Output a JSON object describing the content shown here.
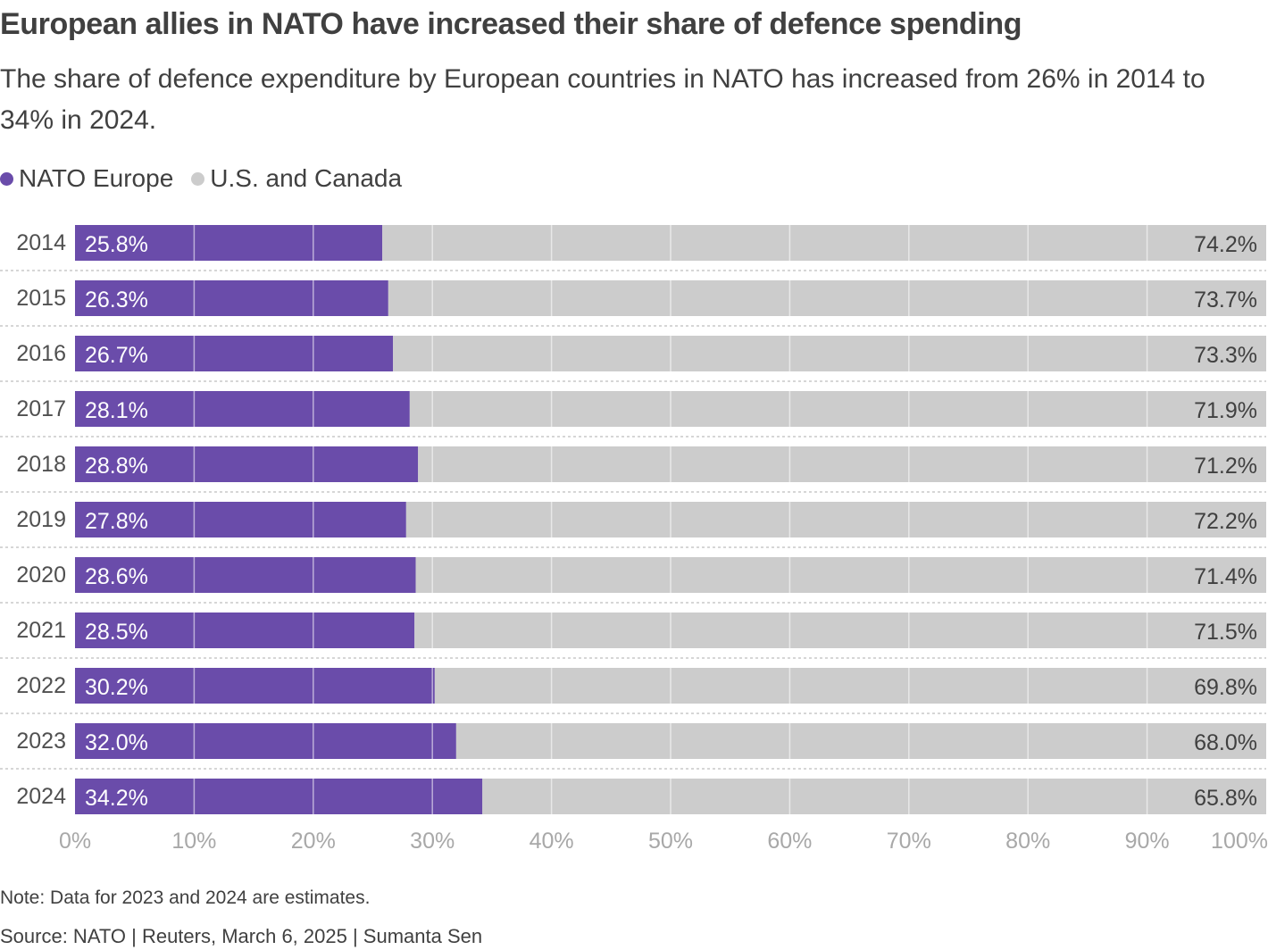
{
  "header": {
    "title": "European allies in NATO have increased their share of defence spending",
    "subtitle": "The share of defence expenditure by European countries in NATO has increased from 26% in 2014 to 34% in 2024."
  },
  "legend": [
    {
      "label": "NATO Europe",
      "color": "#6a4caa"
    },
    {
      "label": "U.S. and Canada",
      "color": "#cccccc"
    }
  ],
  "footer": {
    "note": "Note: Data for 2023 and 2024 are estimates.",
    "source": "Source: NATO | Reuters, March 6, 2025 | Sumanta Sen"
  },
  "chart_data": {
    "type": "bar",
    "orientation": "horizontal",
    "stacked": true,
    "title": "European allies in NATO have increased their share of defence spending",
    "subtitle": "The share of defence expenditure by European countries in NATO has increased from 26% in 2014 to 34% in 2024.",
    "xlabel": "",
    "ylabel": "",
    "categories": [
      "2014",
      "2015",
      "2016",
      "2017",
      "2018",
      "2019",
      "2020",
      "2021",
      "2022",
      "2023",
      "2024"
    ],
    "series": [
      {
        "name": "NATO Europe",
        "color": "#6a4caa",
        "values": [
          25.8,
          26.3,
          26.7,
          28.1,
          28.8,
          27.8,
          28.6,
          28.5,
          30.2,
          32.0,
          34.2
        ],
        "labels": [
          "25.8%",
          "26.3%",
          "26.7%",
          "28.1%",
          "28.8%",
          "27.8%",
          "28.6%",
          "28.5%",
          "30.2%",
          "32.0%",
          "34.2%"
        ]
      },
      {
        "name": "U.S. and Canada",
        "color": "#cccccc",
        "values": [
          74.2,
          73.7,
          73.3,
          71.9,
          71.2,
          72.2,
          71.4,
          71.5,
          69.8,
          68.0,
          65.8
        ],
        "labels": [
          "74.2%",
          "73.7%",
          "73.3%",
          "71.9%",
          "71.2%",
          "72.2%",
          "71.4%",
          "71.5%",
          "69.8%",
          "68.0%",
          "65.8%"
        ]
      }
    ],
    "xlim": [
      0,
      100
    ],
    "xticks": [
      0,
      10,
      20,
      30,
      40,
      50,
      60,
      70,
      80,
      90,
      100
    ],
    "xtick_labels": [
      "0%",
      "10%",
      "20%",
      "30%",
      "40%",
      "50%",
      "60%",
      "70%",
      "80%",
      "90%",
      "100%"
    ],
    "grid": true,
    "legend_position": "top-left",
    "note": "Note: Data for 2023 and 2024 are estimates.",
    "source": "Source: NATO | Reuters, March 6, 2025 | Sumanta Sen"
  }
}
